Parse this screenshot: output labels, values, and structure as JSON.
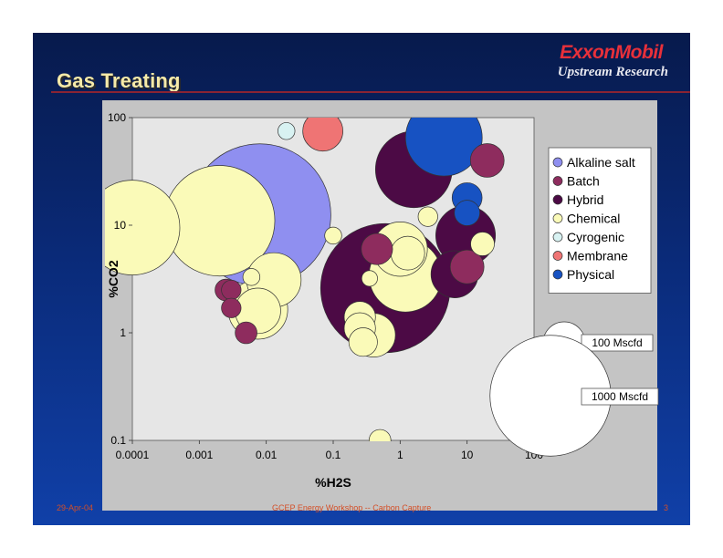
{
  "slide": {
    "title": "Gas Treating",
    "brand": "ExxonMobil",
    "subtitle": "Upstream Research",
    "footer_date": "29-Apr-04",
    "footer_center": "GCEP Energy Workshop -- Carbon Capture",
    "page_number": "3"
  },
  "colors": {
    "slide_bg": "#0a2a78",
    "plot_bg": "#e6e6e6",
    "panel_bg": "#c4c4c4",
    "title_text": "#f6eaa8",
    "brand_red": "#e8303a"
  },
  "chart_data": {
    "type": "bubble",
    "xlabel": "%H2S",
    "ylabel": "%CO2",
    "xscale": "log",
    "yscale": "log",
    "xlim": [
      0.0001,
      100
    ],
    "ylim": [
      0.1,
      100
    ],
    "x_ticks": [
      "0.0001",
      "0.001",
      "0.01",
      "0.1",
      "1",
      "10",
      "100"
    ],
    "y_ticks": [
      "0.1",
      "1",
      "10",
      "100"
    ],
    "size_legend": [
      {
        "label": "100 Mscfd",
        "size": 100
      },
      {
        "label": "1000 Mscfd",
        "size": 1000
      }
    ],
    "series": [
      {
        "name": "Alkaline salt",
        "color": "#8f8ff0",
        "points": [
          {
            "x": 0.008,
            "y": 12.5,
            "size": 1400
          }
        ]
      },
      {
        "name": "Batch",
        "color": "#8e2c5e",
        "points": [
          {
            "x": 0.0025,
            "y": 2.5,
            "size": 20
          },
          {
            "x": 0.003,
            "y": 2.5,
            "size": 15
          },
          {
            "x": 0.003,
            "y": 1.7,
            "size": 15
          },
          {
            "x": 0.005,
            "y": 1.0,
            "size": 20
          },
          {
            "x": 0.45,
            "y": 6.0,
            "size": 50
          },
          {
            "x": 20,
            "y": 40,
            "size": 60
          },
          {
            "x": 10,
            "y": 4.1,
            "size": 60
          }
        ]
      },
      {
        "name": "Hybrid",
        "color": "#4c0a45",
        "points": [
          {
            "x": 1.6,
            "y": 33,
            "size": 380
          },
          {
            "x": 9.5,
            "y": 8.0,
            "size": 220
          },
          {
            "x": 6.5,
            "y": 3.5,
            "size": 130
          },
          {
            "x": 0.6,
            "y": 2.6,
            "size": 1150
          }
        ]
      },
      {
        "name": "Chemical",
        "color": "#fafab8",
        "points": [
          {
            "x": 0.0001,
            "y": 9.5,
            "size": 600
          },
          {
            "x": 0.002,
            "y": 11,
            "size": 830
          },
          {
            "x": 0.013,
            "y": 3.1,
            "size": 180
          },
          {
            "x": 0.0075,
            "y": 1.65,
            "size": 220
          },
          {
            "x": 0.0075,
            "y": 1.6,
            "size": 120
          },
          {
            "x": 0.006,
            "y": 3.3,
            "size": 10
          },
          {
            "x": 0.1,
            "y": 8.0,
            "size": 10
          },
          {
            "x": 0.35,
            "y": 3.2,
            "size": 8
          },
          {
            "x": 0.25,
            "y": 1.4,
            "size": 50
          },
          {
            "x": 0.25,
            "y": 1.1,
            "size": 50
          },
          {
            "x": 0.4,
            "y": 0.95,
            "size": 110
          },
          {
            "x": 0.28,
            "y": 0.82,
            "size": 40
          },
          {
            "x": 1.0,
            "y": 6.0,
            "size": 180
          },
          {
            "x": 1.3,
            "y": 5.5,
            "size": 60
          },
          {
            "x": 1.2,
            "y": 3.4,
            "size": 340
          },
          {
            "x": 2.6,
            "y": 12,
            "size": 15
          },
          {
            "x": 17,
            "y": 6.7,
            "size": 25
          },
          {
            "x": 0.5,
            "y": 0.1,
            "size": 20
          }
        ]
      },
      {
        "name": "Cyrogenic",
        "color": "#d8f2f2",
        "points": [
          {
            "x": 0.02,
            "y": 75,
            "size": 10
          }
        ]
      },
      {
        "name": "Membrane",
        "color": "#ef7474",
        "points": [
          {
            "x": 0.07,
            "y": 75,
            "size": 90
          }
        ]
      },
      {
        "name": "Physical",
        "color": "#1752c2",
        "points": [
          {
            "x": 4.5,
            "y": 65,
            "size": 380
          },
          {
            "x": 10,
            "y": 18,
            "size": 45
          },
          {
            "x": 10,
            "y": 13,
            "size": 30
          }
        ]
      }
    ]
  }
}
